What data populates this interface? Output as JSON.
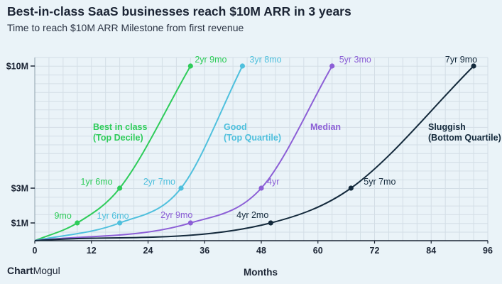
{
  "chart_data": {
    "type": "line",
    "title": "Best-in-class SaaS businesses reach $10M ARR in 3 years",
    "subtitle": "Time to reach $10M ARR Milestone from first revenue",
    "xlabel": "Months",
    "ylabel": "",
    "xlim": [
      0,
      96
    ],
    "x_ticks": [
      0,
      12,
      24,
      36,
      48,
      60,
      72,
      84,
      96
    ],
    "x_tick_labels": [
      "0",
      "12",
      "24",
      "36",
      "48",
      "60",
      "72",
      "84",
      "96"
    ],
    "y_ticks": [
      1,
      3,
      10
    ],
    "y_tick_labels": [
      "$1M",
      "$3M",
      "$10M"
    ],
    "grid": true,
    "series": [
      {
        "name": "Best in class (Top Decile)",
        "label_lines": [
          "Best in class",
          "(Top Decile)"
        ],
        "color": "#2ecc5a",
        "curve": [
          [
            0,
            0
          ],
          [
            9,
            1
          ],
          [
            18,
            3
          ],
          [
            33,
            10
          ]
        ],
        "milestones": [
          {
            "month": 9,
            "arr": 1,
            "label": "9mo"
          },
          {
            "month": 18,
            "arr": 3,
            "label": "1yr 6mo"
          },
          {
            "month": 33,
            "arr": 10,
            "label": "2yr 9mo"
          }
        ]
      },
      {
        "name": "Good (Top Quartile)",
        "label_lines": [
          "Good",
          "(Top Quartile)"
        ],
        "color": "#4fc0dd",
        "curve": [
          [
            0,
            0
          ],
          [
            18,
            1
          ],
          [
            31,
            3
          ],
          [
            44,
            10
          ]
        ],
        "milestones": [
          {
            "month": 18,
            "arr": 1,
            "label": "1yr 6mo"
          },
          {
            "month": 31,
            "arr": 3,
            "label": "2yr 7mo"
          },
          {
            "month": 44,
            "arr": 10,
            "label": "3yr 8mo"
          }
        ]
      },
      {
        "name": "Median",
        "label_lines": [
          "Median"
        ],
        "color": "#8c5fd6",
        "curve": [
          [
            0,
            0
          ],
          [
            33,
            1
          ],
          [
            48,
            3
          ],
          [
            63,
            10
          ]
        ],
        "milestones": [
          {
            "month": 33,
            "arr": 1,
            "label": "2yr 9mo"
          },
          {
            "month": 48,
            "arr": 3,
            "label": "4yr"
          },
          {
            "month": 63,
            "arr": 10,
            "label": "5yr 3mo"
          }
        ]
      },
      {
        "name": "Sluggish (Bottom Quartile)",
        "label_lines": [
          "Sluggish",
          "(Bottom Quartile)"
        ],
        "color": "#142a3c",
        "curve": [
          [
            0,
            0
          ],
          [
            50,
            1
          ],
          [
            67,
            3
          ],
          [
            93,
            10
          ]
        ],
        "milestones": [
          {
            "month": 50,
            "arr": 1,
            "label": "4yr 2mo"
          },
          {
            "month": 67,
            "arr": 3,
            "label": "5yr 7mo"
          },
          {
            "month": 93,
            "arr": 10,
            "label": "7yr 9mo"
          }
        ]
      }
    ]
  },
  "brand": {
    "name_bold": "Chart",
    "name_regular": "Mogul"
  }
}
